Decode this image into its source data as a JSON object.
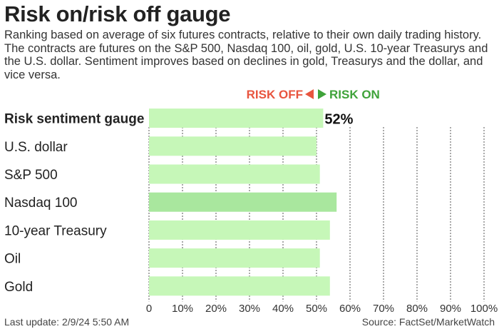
{
  "title": "Risk on/risk off gauge",
  "subtitle": "Ranking based on average of six futures contracts, relative to their own daily trading history. The contracts are futures on the S&P 500, Nasdaq 100, oil, gold, U.S. 10-year Treasurys and the U.S. dollar. Sentiment improves based on declines in gold, Treasurys and the dollar, and vice versa.",
  "legend": {
    "risk_off": "RISK OFF",
    "risk_on": "RISK ON",
    "risk_off_color": "#e8553f",
    "risk_on_color": "#3fa33a"
  },
  "footer": {
    "last_update": "Last update: 2/9/24 5:50 AM",
    "source": "Source: FactSet/MarketWatch"
  },
  "colors": {
    "bar": "#c6f7b8",
    "bar_highlight": "#a9e79e",
    "label": "#222222",
    "grid": "#555555"
  },
  "chart_data": {
    "type": "bar",
    "orientation": "horizontal",
    "categories": [
      "Risk sentiment gauge",
      "U.S. dollar",
      "S&P 500",
      "Nasdaq 100",
      "10-year Treasury",
      "Oil",
      "Gold"
    ],
    "values": [
      52,
      50,
      51,
      56,
      54,
      51,
      54
    ],
    "highlight_index": 3,
    "bold_index": 0,
    "data_labels": [
      "52%",
      "",
      "",
      "",
      "",
      "",
      ""
    ],
    "xlim": [
      0,
      100
    ],
    "x_ticks": [
      0,
      10,
      20,
      30,
      40,
      50,
      60,
      70,
      80,
      90,
      100
    ],
    "x_tick_labels": [
      "0",
      "10%",
      "20%",
      "30%",
      "40%",
      "50%",
      "60%",
      "70%",
      "80%",
      "90%",
      "100%"
    ],
    "grid": "vertical dotted"
  }
}
